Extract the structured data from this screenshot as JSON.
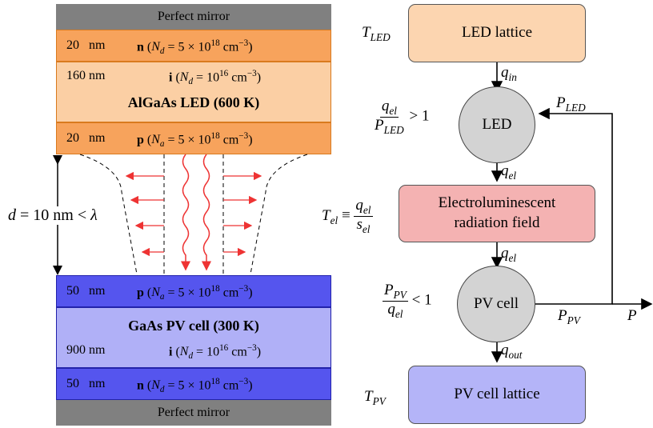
{
  "structure": {
    "top_mirror": "Perfect mirror",
    "bottom_mirror": "Perfect mirror",
    "led_n": {
      "thickness": "20 nm",
      "type": "n",
      "doping": "(N_d = 5 × 10^18 cm^−3)"
    },
    "led_i": {
      "thickness": "160 nm",
      "type": "i",
      "doping": "(N_d = 10^16 cm^−3)"
    },
    "led_title": "AlGaAs LED (600 K)",
    "led_p": {
      "thickness": "20 nm",
      "type": "p",
      "doping": "(N_a = 5 × 10^18 cm^−3)"
    },
    "gap_label": "d = 10 nm < λ",
    "pv_p": {
      "thickness": "50 nm",
      "type": "p",
      "doping": "(N_a = 5 × 10^18 cm^−3)"
    },
    "pv_title": "GaAs PV cell (300 K)",
    "pv_i": {
      "thickness": "900 nm",
      "type": "i",
      "doping": "(N_d = 10^16 cm^−3)"
    },
    "pv_n": {
      "thickness": "50 nm",
      "type": "n",
      "doping": "(N_d = 5 × 10^18 cm^−3)"
    }
  },
  "flow": {
    "led_lattice": "LED lattice",
    "led": "LED",
    "field_line1": "Electroluminescent",
    "field_line2": "radiation field",
    "pv_cell": "PV cell",
    "pv_lattice": "PV cell lattice",
    "t_led": "T_LED",
    "t_pv": "T_PV",
    "t_el": "T_el ≡ q_el / s_el",
    "q_in": "q_in",
    "q_el_1": "q_el",
    "q_el_2": "q_el",
    "q_out": "q_out",
    "p_led": "P_LED",
    "p_pv": "P_PV",
    "p": "P",
    "led_ratio": "q_el / P_LED > 1",
    "pv_ratio": "P_PV / q_el < 1"
  },
  "colors": {
    "led_dark": "#f7a35c",
    "led_light": "#fbcfa4",
    "pv_dark": "#5555ee",
    "pv_light": "#b0b0f7",
    "lattice_led": "#fcd5b0",
    "field": "#f4b2b2",
    "lattice_pv": "#b4b4f8",
    "circle": "#d3d3d3",
    "radiation": "#ee3333"
  }
}
